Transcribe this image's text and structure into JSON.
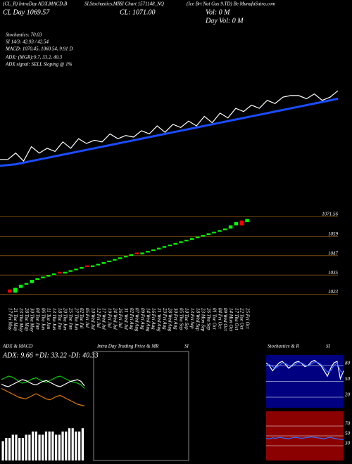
{
  "header": {
    "t1": "(CL_R) IntraDay ADX,MACD,B",
    "t2": "SI,Stochastics,MR",
    "t3": "SI Chart 1571148_NQ",
    "t4": "(Ice Brt Nat Gas 9.TD) Be MunafaSutra.com",
    "day": "CL Day 1069.57",
    "cl": "CL: 1071.00",
    "vol": "Vol: 0 M",
    "dayvol": "Day Vol: 0 M",
    "stoch": "Stochastics: 70.03",
    "si": "SI 14/3: 42.93 / 42.54",
    "macd": "MACD: 1070.45, 1060.54, 9.91 D",
    "adx": "ADX: (MGR):9.7, 33.2, 40.3",
    "signal": "ADX signal: SELL Sloping @ 1%",
    "intraday_title": "Intra Day Trading Price & MR",
    "intraday_si": "SI"
  },
  "chart_data": [
    {
      "type": "line",
      "ylim": [
        1015,
        1070
      ],
      "series": [
        {
          "color": "#ffffff",
          "values": [
            1023,
            1023,
            1027,
            1022,
            1031,
            1027,
            1030,
            1028,
            1034,
            1030,
            1036,
            1033,
            1035,
            1034,
            1039,
            1036,
            1038,
            1037,
            1041,
            1039,
            1044,
            1040,
            1045,
            1043,
            1047,
            1044,
            1050,
            1046,
            1052,
            1049,
            1055,
            1053,
            1057,
            1055,
            1060,
            1058,
            1062,
            1063,
            1063,
            1061,
            1064,
            1060,
            1062,
            1066
          ]
        },
        {
          "color": "#1a4cff",
          "values": [
            1019,
            1019.5,
            1020,
            1021,
            1022,
            1023,
            1024,
            1025,
            1026,
            1027,
            1028,
            1029,
            1030,
            1031,
            1032,
            1033,
            1034,
            1035,
            1036,
            1037,
            1038,
            1039,
            1040,
            1041,
            1042,
            1043,
            1044,
            1045,
            1046,
            1047,
            1048,
            1049,
            1050,
            1051,
            1052,
            1053,
            1054,
            1055,
            1056,
            1057,
            1058,
            1059,
            1060,
            1061
          ]
        }
      ]
    },
    {
      "type": "candlestick",
      "ylim": [
        1018,
        1075
      ],
      "yticks": [
        1071.56,
        1059,
        1047,
        1035,
        1023
      ],
      "grid_color": "#b8741a",
      "up_color": "#00ff00",
      "down_color": "#ff0000",
      "categories": [
        "17 Fri May",
        "21 Tue May",
        "23 Thu May",
        "28 Tue May",
        "30 Thu May",
        "04 Tue Jun",
        "06 Thu Jun",
        "11 Tue Jun",
        "13 Thu Jun",
        "18 Tue Jun",
        "20 Thu Jun",
        "25 Tue Jun",
        "27 Thu Jun",
        "02 Tue Jul",
        "05 Fri Jul",
        "10 Wed Jul",
        "12 Fri Jul",
        "17 Wed Jul",
        "19 Fri Jul",
        "24 Wed Jul",
        "26 Fri Jul",
        "31 Wed Jul",
        "02 Fri Aug",
        "07 Wed Aug",
        "09 Fri Aug",
        "14 Wed Aug",
        "16 Fri Aug",
        "21 Wed Aug",
        "23 Fri Aug",
        "28 Wed Aug",
        "30 Fri Aug",
        "05 Thu Sep",
        "10 Tue Sep",
        "13 Fri Sep",
        "18 Wed Sep",
        "23 Mon Sep",
        "26 Thu Sep",
        "01 Tue Oct",
        "04 Fri Oct",
        "09 Wed Oct",
        "14 Mon Oct",
        "17 Thu Oct",
        "22 Tue Oct",
        "25 Fri Oct"
      ],
      "open": [
        1026,
        1024,
        1027,
        1029,
        1030,
        1032,
        1033,
        1034,
        1035,
        1037,
        1036,
        1037,
        1038,
        1039,
        1041,
        1040,
        1041,
        1042,
        1043,
        1044,
        1045,
        1046,
        1047,
        1049,
        1048,
        1049,
        1050,
        1051,
        1052,
        1053,
        1054,
        1055,
        1056,
        1057,
        1058,
        1059,
        1060,
        1061,
        1062,
        1063,
        1064,
        1066,
        1069,
        1068
      ],
      "close": [
        1024,
        1027,
        1029,
        1030,
        1032,
        1033,
        1034,
        1035,
        1036,
        1036,
        1037,
        1038,
        1039,
        1040,
        1040,
        1041,
        1042,
        1043,
        1044,
        1045,
        1046,
        1047,
        1048,
        1048,
        1049,
        1050,
        1051,
        1052,
        1053,
        1054,
        1055,
        1056,
        1057,
        1058,
        1059,
        1060,
        1061,
        1062,
        1063,
        1064,
        1066,
        1068,
        1066,
        1070
      ]
    },
    {
      "type": "line",
      "title": "ADX & MACD",
      "label": "ADX: 9.66 +DI: 33.22 -DI: 40.33",
      "ylim": [
        0,
        60
      ],
      "series": [
        {
          "color": "#00cc00",
          "values": [
            40,
            42,
            44,
            43,
            41,
            38,
            36,
            37,
            39,
            41,
            42,
            40,
            38,
            37,
            39,
            41,
            43,
            44,
            42,
            40,
            38,
            37,
            36,
            34,
            30
          ]
        },
        {
          "color": "#ffffff",
          "values": [
            35,
            33,
            32,
            34,
            36,
            38,
            40,
            39,
            37,
            35,
            34,
            36,
            38,
            39,
            37,
            35,
            33,
            32,
            34,
            36,
            38,
            39,
            40,
            38,
            33
          ]
        },
        {
          "color": "#e07b00",
          "values": [
            30,
            28,
            26,
            24,
            22,
            20,
            19,
            18,
            20,
            22,
            24,
            22,
            20,
            18,
            17,
            19,
            21,
            22,
            20,
            18,
            16,
            14,
            12,
            11,
            10
          ]
        }
      ]
    },
    {
      "type": "bar",
      "ylim": [
        0,
        12
      ],
      "color": "#ffffff",
      "values": [
        6,
        7,
        7,
        8,
        8,
        7,
        7,
        8,
        8,
        9,
        9,
        8,
        8,
        9,
        9,
        9,
        8,
        8,
        9,
        9,
        10,
        10,
        9,
        9,
        10
      ]
    },
    {
      "type": "line",
      "title": "Stochastics & R",
      "title2": "SI",
      "background": "#000080",
      "ylim": [
        0,
        100
      ],
      "yticks": [
        80,
        50,
        20
      ],
      "series": [
        {
          "color": "#ffffff",
          "values": [
            85,
            80,
            70,
            78,
            85,
            88,
            82,
            75,
            80,
            86,
            88,
            84,
            78,
            80,
            87,
            90,
            85,
            80,
            70,
            60,
            75,
            85,
            88,
            55,
            70
          ]
        },
        {
          "color": "#3a6cff",
          "values": [
            80,
            82,
            78,
            75,
            80,
            85,
            84,
            80,
            78,
            82,
            86,
            85,
            81,
            79,
            83,
            87,
            86,
            82,
            75,
            68,
            70,
            80,
            85,
            70,
            65
          ]
        }
      ]
    },
    {
      "type": "line",
      "background": "#8b0000",
      "ylim": [
        0,
        100
      ],
      "yticks": [
        70,
        50,
        30
      ],
      "series": [
        {
          "color": "#3a6cff",
          "values": [
            45,
            44,
            46,
            45,
            47,
            46,
            45,
            44,
            46,
            47,
            46,
            45,
            46,
            47,
            48,
            47,
            46,
            45,
            44,
            46,
            47,
            45,
            44,
            43,
            42
          ]
        }
      ]
    }
  ]
}
